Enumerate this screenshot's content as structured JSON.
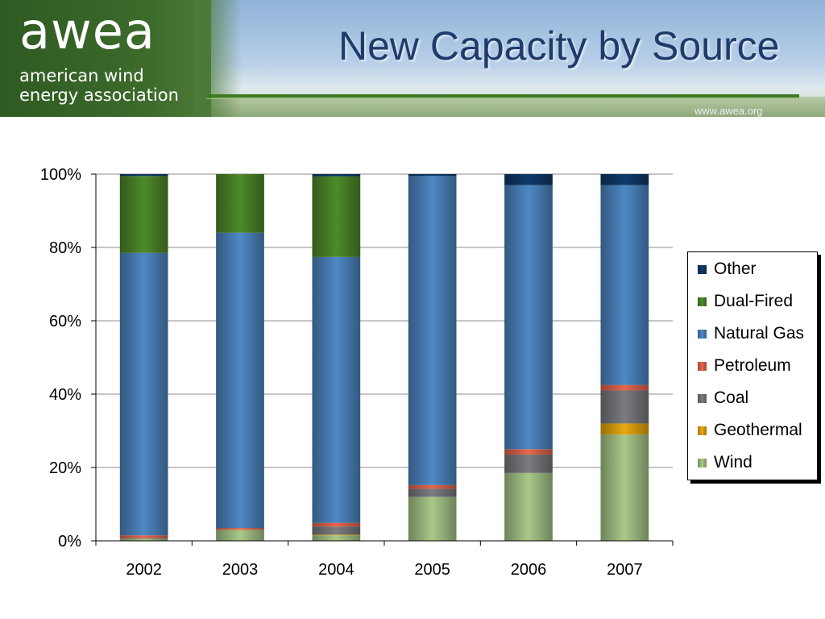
{
  "header": {
    "logo_word": "awea",
    "logo_sub": "american wind energy association",
    "title": "New Capacity by Source",
    "url": "www.awea.org"
  },
  "chart_data": {
    "type": "bar",
    "stacked": true,
    "categories": [
      "2002",
      "2003",
      "2004",
      "2005",
      "2006",
      "2007"
    ],
    "ylim": [
      0,
      100
    ],
    "yticks": [
      "0%",
      "20%",
      "40%",
      "60%",
      "80%",
      "100%"
    ],
    "grid": true,
    "legend_position": "right",
    "series": [
      {
        "name": "Wind",
        "color": "#a9c98a",
        "values": [
          0.5,
          3,
          1.5,
          12,
          18.5,
          29
        ]
      },
      {
        "name": "Geothermal",
        "color": "#e8a90f",
        "values": [
          0,
          0,
          0.2,
          0,
          0,
          3
        ]
      },
      {
        "name": "Coal",
        "color": "#7b7c80",
        "values": [
          0.2,
          0,
          2.2,
          2.2,
          5,
          9
        ]
      },
      {
        "name": "Petroleum",
        "color": "#e5674e",
        "values": [
          0.8,
          0.5,
          1,
          1,
          1.5,
          1.5
        ]
      },
      {
        "name": "Natural Gas",
        "color": "#4e88c4",
        "values": [
          77,
          80.5,
          72.5,
          84.3,
          72,
          54.5
        ]
      },
      {
        "name": "Dual-Fired",
        "color": "#4f8a2a",
        "values": [
          21,
          16,
          22,
          0,
          0,
          0
        ]
      },
      {
        "name": "Other",
        "color": "#0f3a6a",
        "values": [
          0.5,
          0,
          0.6,
          0.5,
          3,
          3
        ]
      }
    ],
    "legend_order": [
      "Other",
      "Dual-Fired",
      "Natural Gas",
      "Petroleum",
      "Coal",
      "Geothermal",
      "Wind"
    ]
  }
}
